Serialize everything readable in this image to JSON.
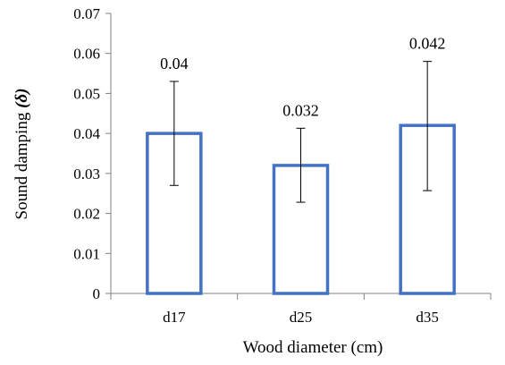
{
  "chart_data": {
    "type": "bar",
    "categories": [
      "d17",
      "d25",
      "d35"
    ],
    "values": [
      0.04,
      0.032,
      0.042
    ],
    "data_labels": [
      "0.04",
      "0.032",
      "0.042"
    ],
    "error_bars": [
      {
        "low": 0.027,
        "high": 0.053
      },
      {
        "low": 0.0228,
        "high": 0.0413
      },
      {
        "low": 0.0257,
        "high": 0.058
      }
    ],
    "xlabel": "Wood diameter (cm)",
    "ylabel_text": "Sound damping ",
    "ylabel_symbol": "(δ)",
    "ylim": [
      0,
      0.07
    ],
    "yticks": [
      "0",
      "0.01",
      "0.02",
      "0.03",
      "0.04",
      "0.05",
      "0.06",
      "0.07"
    ],
    "ytick_values": [
      0,
      0.01,
      0.02,
      0.03,
      0.04,
      0.05,
      0.06,
      0.07
    ],
    "grid": false,
    "legend": "none",
    "bar_fill": "#ffffff",
    "bar_stroke": "#4472c4",
    "axis_color": "#808080"
  }
}
